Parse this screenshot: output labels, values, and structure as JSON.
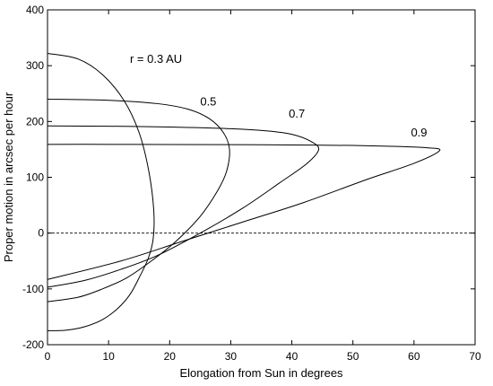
{
  "chart_data": {
    "type": "line",
    "title": "",
    "xlabel": "Elongation from Sun in degrees",
    "ylabel": "Proper motion in arcsec per hour",
    "xlim": [
      0,
      70
    ],
    "ylim": [
      -200,
      400
    ],
    "xticks": [
      "0",
      "10",
      "20",
      "30",
      "40",
      "50",
      "60",
      "70"
    ],
    "yticks": [
      "-200",
      "-100",
      "0",
      "100",
      "200",
      "300",
      "400"
    ],
    "grid": false,
    "series": [
      {
        "name": "r = 0.3 AU",
        "x": [
          0,
          5,
          9,
          12.5,
          15,
          16.6,
          17.4,
          17.3,
          16.5,
          15,
          13.5,
          11.5,
          9,
          6,
          3,
          0
        ],
        "y": [
          322,
          312,
          284,
          238,
          180,
          110,
          40,
          -10,
          -45,
          -80,
          -110,
          -135,
          -155,
          -168,
          -174,
          -175
        ]
      },
      {
        "name": "0.5",
        "x": [
          0,
          10,
          18,
          23,
          26.5,
          28.8,
          29.8,
          29.3,
          27.8,
          25,
          21,
          17,
          13,
          9,
          5,
          0
        ],
        "y": [
          240,
          238,
          232,
          222,
          205,
          180,
          150,
          110,
          75,
          30,
          -15,
          -50,
          -80,
          -100,
          -115,
          -123
        ]
      },
      {
        "name": "0.7",
        "x": [
          0,
          10,
          20,
          30,
          36,
          40,
          43,
          44.4,
          42.5,
          38,
          32,
          25,
          18,
          12,
          6,
          0
        ],
        "y": [
          192,
          191.5,
          190,
          187,
          183,
          177,
          165,
          150,
          125,
          90,
          45,
          0,
          -40,
          -65,
          -85,
          -97
        ]
      },
      {
        "name": "0.9",
        "x": [
          0,
          10,
          20,
          30,
          40,
          50,
          58,
          62,
          64.2,
          60,
          52,
          42,
          32,
          22,
          12,
          0
        ],
        "y": [
          159,
          159,
          158.8,
          158.5,
          158,
          157,
          155,
          153,
          148,
          125,
          95,
          55,
          20,
          -15,
          -50,
          -83
        ]
      }
    ],
    "reference_line": {
      "y": 0,
      "style": "dashed"
    },
    "labels": [
      {
        "text": "r = 0.3 AU",
        "x": 13.5,
        "y": 305
      },
      {
        "text": "0.5",
        "x": 25,
        "y": 229
      },
      {
        "text": "0.7",
        "x": 39.5,
        "y": 207
      },
      {
        "text": "0.9",
        "x": 59.5,
        "y": 173
      }
    ]
  }
}
